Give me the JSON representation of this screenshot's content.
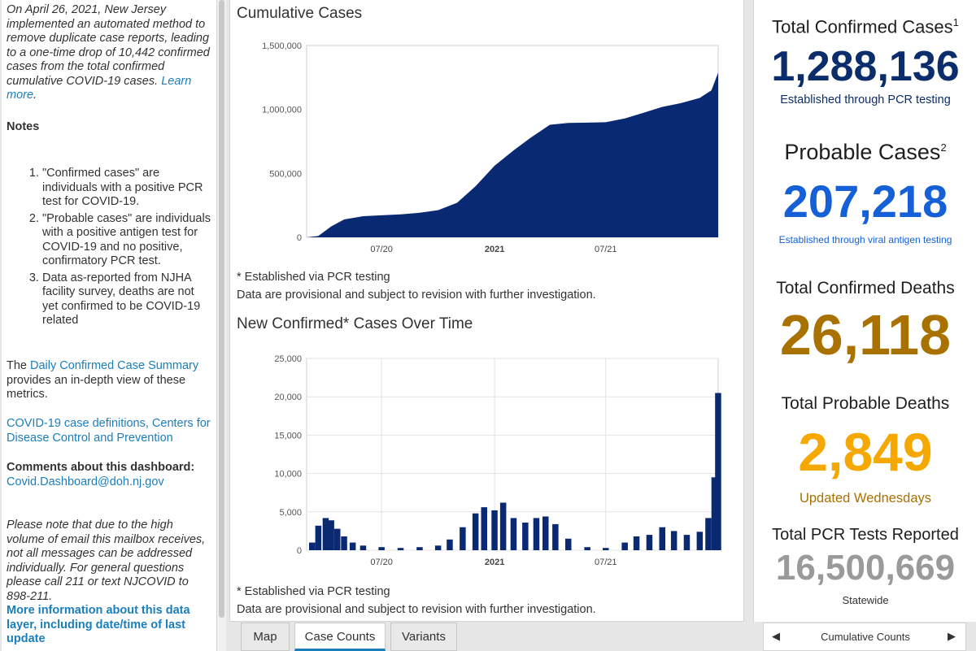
{
  "notes_panel": {
    "intro_italic": "On April 26, 2021, New Jersey implemented an automated method to remove duplicate case reports, leading to a one-time drop of 10,442 confirmed cases from the total confirmed cumulative COVID-19 cases.",
    "learn_more": "Learn more",
    "notes_heading": "Notes",
    "notes": [
      "\"Confirmed cases\" are individuals with a positive PCR test for COVID-19.",
      "\"Probable cases\" are individuals with a positive antigen test for COVID-19 and no positive, confirmatory PCR test.",
      "Data as-reported from NJHA facility survey, deaths are not yet confirmed to be COVID-19 related"
    ],
    "daily_prefix": "The ",
    "daily_link": "Daily Confirmed Case Summary",
    "daily_suffix": " provides an in-depth view of these metrics.",
    "cdc_link": "COVID-19 case definitions, Centers for Disease Control and Prevention",
    "comments_label": "Comments about this dashboard:",
    "comments_email": "Covid.Dashboard@doh.nj.gov",
    "email_note": "Please note that due to the high volume of email this mailbox receives, not all messages can be addressed individually. For general questions please call 211 or text NJCOVID to 898-211.",
    "more_info_link": "More information about this data layer, including date/time of last update"
  },
  "chart_data": [
    {
      "type": "area",
      "title": "Cumulative Cases",
      "xlabel": "",
      "ylabel": "",
      "x_ticks": [
        "07/20",
        "2021",
        "07/21"
      ],
      "y_ticks": [
        "1,500,000",
        "1,000,000",
        "500,000",
        "0"
      ],
      "ylim": [
        0,
        1500000
      ],
      "x": [
        "2020-03-01",
        "2020-03-20",
        "2020-04-10",
        "2020-05-01",
        "2020-06-01",
        "2020-07-01",
        "2020-08-01",
        "2020-09-01",
        "2020-10-01",
        "2020-11-01",
        "2020-12-01",
        "2021-01-01",
        "2021-02-01",
        "2021-03-01",
        "2021-04-01",
        "2021-05-01",
        "2021-06-01",
        "2021-07-01",
        "2021-08-01",
        "2021-09-01",
        "2021-10-01",
        "2021-11-01",
        "2021-12-01",
        "2021-12-20",
        "2021-12-31"
      ],
      "values": [
        0,
        10000,
        85000,
        140000,
        165000,
        172000,
        180000,
        192000,
        212000,
        270000,
        400000,
        560000,
        680000,
        780000,
        880000,
        895000,
        897000,
        900000,
        930000,
        975000,
        1020000,
        1050000,
        1090000,
        1150000,
        1288136
      ],
      "grid": false,
      "note": "* Established via PCR testing",
      "note2": "Data are provisional and subject to revision with further investigation.",
      "color": "#092a73"
    },
    {
      "type": "bar",
      "title": "New Confirmed* Cases Over Time",
      "xlabel": "",
      "ylabel": "",
      "x_ticks": [
        "07/20",
        "2021",
        "07/21"
      ],
      "y_ticks": [
        "25,000",
        "20,000",
        "15,000",
        "10,000",
        "5,000",
        "0"
      ],
      "ylim": [
        0,
        25000
      ],
      "x": [
        "2020-03-01",
        "2020-03-10",
        "2020-03-20",
        "2020-04-01",
        "2020-04-10",
        "2020-04-20",
        "2020-05-01",
        "2020-05-15",
        "2020-06-01",
        "2020-07-01",
        "2020-08-01",
        "2020-09-01",
        "2020-10-01",
        "2020-10-20",
        "2020-11-10",
        "2020-12-01",
        "2020-12-15",
        "2021-01-01",
        "2021-01-15",
        "2021-02-01",
        "2021-02-20",
        "2021-03-10",
        "2021-03-25",
        "2021-04-10",
        "2021-05-01",
        "2021-06-01",
        "2021-07-01",
        "2021-08-01",
        "2021-08-20",
        "2021-09-10",
        "2021-10-01",
        "2021-10-20",
        "2021-11-10",
        "2021-12-01",
        "2021-12-15",
        "2021-12-25",
        "2021-12-31"
      ],
      "values": [
        0,
        1000,
        3200,
        4200,
        3900,
        2800,
        1800,
        1000,
        600,
        400,
        300,
        400,
        600,
        1400,
        3000,
        4800,
        5600,
        5200,
        6200,
        4200,
        3600,
        4200,
        4400,
        3400,
        1500,
        400,
        300,
        1000,
        1800,
        2000,
        3000,
        2500,
        2000,
        2400,
        4200,
        9500,
        20500
      ],
      "grid": true,
      "note": "* Established via PCR testing",
      "note2": "Data are provisional and subject to revision with further investigation.",
      "color": "#092a73"
    }
  ],
  "tabs": [
    {
      "label": "Map"
    },
    {
      "label": "Case Counts"
    },
    {
      "label": "Variants"
    }
  ],
  "stats": {
    "confirmed_cases": {
      "label": "Total Confirmed Cases",
      "sup": "1",
      "value": "1,288,136",
      "sub": "Established through PCR testing",
      "color": "#0c2d6b"
    },
    "probable_cases": {
      "label": "Probable Cases",
      "sup": "2",
      "value": "207,218",
      "sub": "Established through viral antigen testing",
      "color": "#1560d6"
    },
    "confirmed_deaths": {
      "label": "Total Confirmed Deaths",
      "value": "26,118",
      "color": "#a87100"
    },
    "probable_deaths": {
      "label": "Total Probable Deaths",
      "value": "2,849",
      "sub": "Updated Wednesdays",
      "color": "#f5a800",
      "sub_color": "#a87100"
    },
    "pcr_tests": {
      "label": "Total PCR Tests Reported",
      "value": "16,500,669",
      "sub": "Statewide",
      "color": "#9a9a9a"
    }
  },
  "bottom_nav": {
    "label": "Cumulative Counts",
    "prev_icon": "◀",
    "next_icon": "▶"
  }
}
